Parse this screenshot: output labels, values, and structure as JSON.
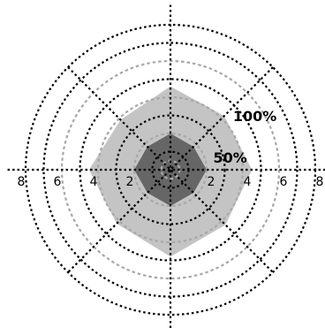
{
  "chart_data": {
    "type": "radar",
    "title": "",
    "axes_count": 8,
    "rlim": [
      0,
      8
    ],
    "ring_values_black": [
      1,
      3,
      5,
      7,
      8
    ],
    "ring_values_gray": [
      0.5,
      2,
      4,
      6
    ],
    "tick_labels": [
      "2",
      "4",
      "6",
      "8"
    ],
    "series": [
      {
        "color": "#c4c4c4",
        "values": [
          4.5,
          4.2,
          4.6,
          3.9,
          4.5,
          4.2,
          4.8,
          4.3
        ]
      },
      {
        "color": "#666666",
        "values": [
          2.0,
          1.8,
          2.0,
          1.8,
          2.0,
          1.8,
          2.0,
          1.8
        ]
      }
    ],
    "annotations": [
      {
        "text": "100%",
        "r": 4.2,
        "angle_deg": 45
      },
      {
        "text": "50%",
        "r": 2.0,
        "angle_deg": 20
      }
    ],
    "grid": true
  }
}
